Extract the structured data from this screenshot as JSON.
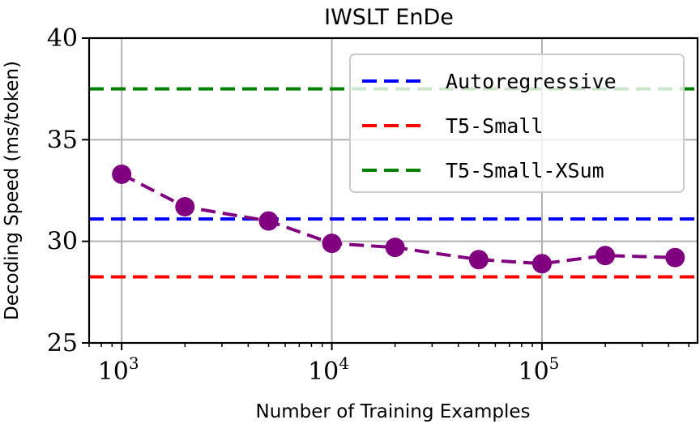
{
  "chart_data": {
    "type": "line",
    "title": "IWSLT EnDe",
    "xlabel": "Number of Training Examples",
    "ylabel": "Decoding Speed (ms/token)",
    "xscale": "log",
    "xlim": [
      700,
      550000
    ],
    "ylim": [
      25,
      40
    ],
    "yticks": [
      25,
      30,
      35,
      40
    ],
    "xticks": [
      {
        "value": 1000,
        "base": "10",
        "exp": "3"
      },
      {
        "value": 10000,
        "base": "10",
        "exp": "4"
      },
      {
        "value": 100000,
        "base": "10",
        "exp": "5"
      }
    ],
    "grid": true,
    "legend_position": "upper-right",
    "series": [
      {
        "type": "line-markers",
        "color": "#800080",
        "style": "dashed",
        "x": [
          1000,
          2000,
          5000,
          10000,
          20000,
          50000,
          100000,
          200000,
          430000
        ],
        "y": [
          33.3,
          31.7,
          31.0,
          29.9,
          29.7,
          29.1,
          28.9,
          29.3,
          29.2
        ]
      }
    ],
    "reference_lines": [
      {
        "name": "Autoregressive",
        "y": 31.1,
        "color": "#0000ff",
        "style": "dashed"
      },
      {
        "name": "T5-Small",
        "y": 28.25,
        "color": "#ff0000",
        "style": "dashed"
      },
      {
        "name": "T5-Small-XSum",
        "y": 37.5,
        "color": "#008000",
        "style": "dashed"
      }
    ]
  }
}
